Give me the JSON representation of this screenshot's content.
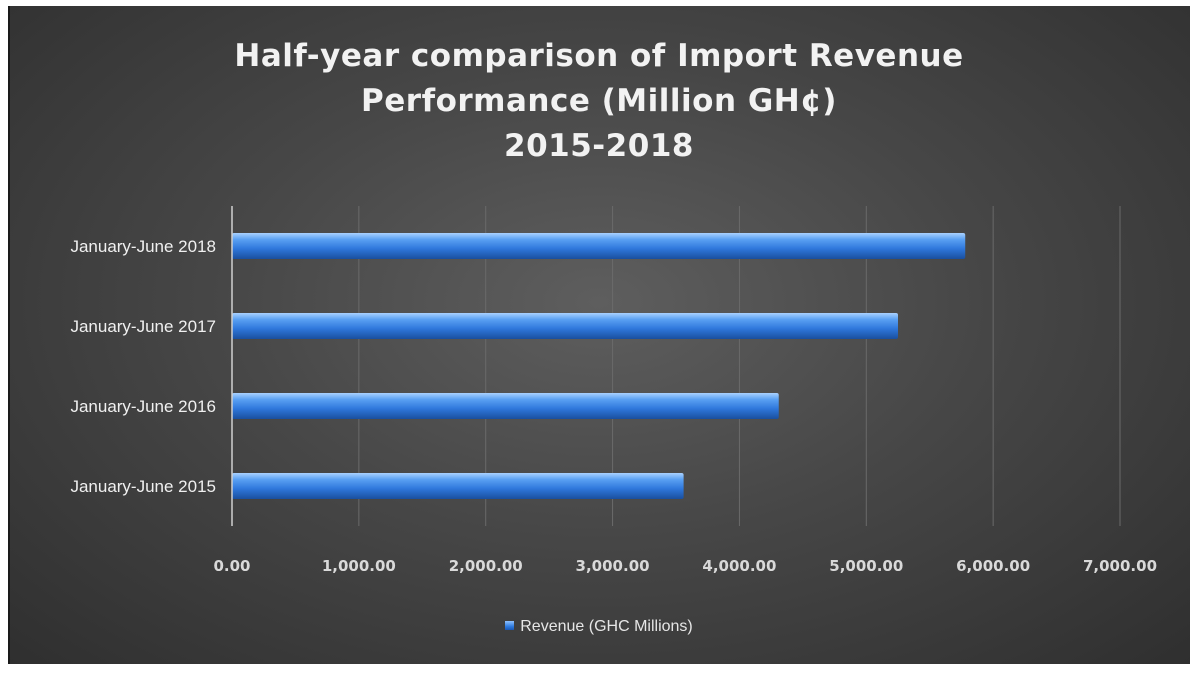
{
  "chart_data": {
    "type": "bar",
    "orientation": "horizontal",
    "title_lines": [
      "Half-year comparison of  Import Revenue",
      "Performance (Million GH¢)",
      "2015-2018"
    ],
    "categories": [
      "January-June 2018",
      "January-June 2017",
      "January-June 2016",
      "January-June 2015"
    ],
    "series": [
      {
        "name": "Revenue (GHC Millions)",
        "values": [
          5780,
          5250,
          4310,
          3560
        ]
      }
    ],
    "x_ticks": [
      "0.00",
      "1,000.00",
      "2,000.00",
      "3,000.00",
      "4,000.00",
      "5,000.00",
      "6,000.00",
      "7,000.00"
    ],
    "xlim": [
      0,
      7000
    ],
    "grid": "vertical",
    "legend_position": "bottom",
    "colors": {
      "bar": "#3a86e8",
      "bar_highlight": "#9cc9ff",
      "background": "#474747",
      "grid": "#6a6a6a"
    }
  }
}
